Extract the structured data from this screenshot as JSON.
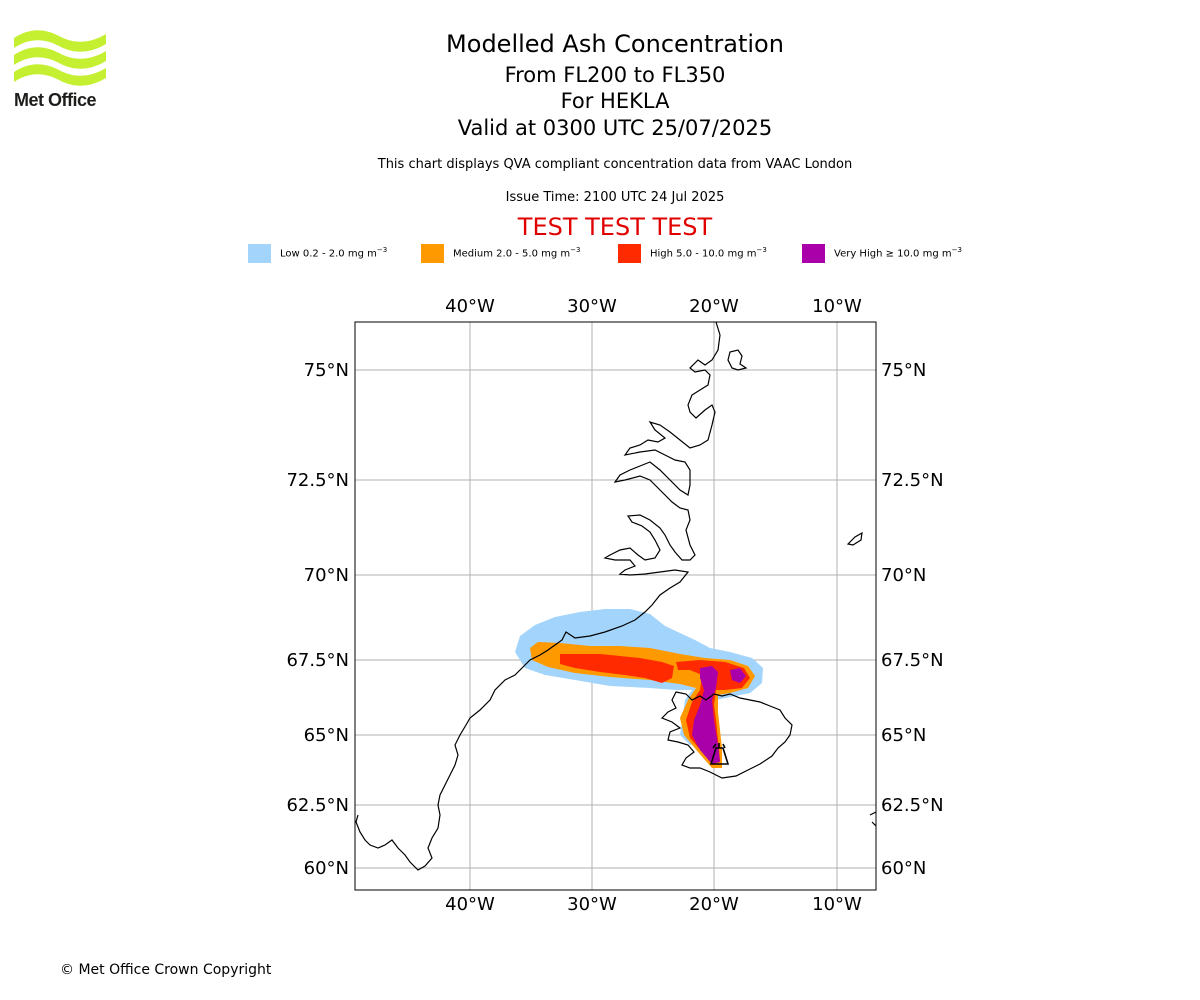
{
  "logo": {
    "text": "Met Office",
    "accent_color": "#c5f032"
  },
  "header": {
    "title": "Modelled Ash Concentration",
    "levels": "From FL200 to FL350",
    "volcano": "For HEKLA",
    "valid_time": "Valid at 0300 UTC 25/07/2025",
    "description": "This chart displays QVA compliant concentration data from VAAC London",
    "issue_time": "Issue Time: 2100 UTC 24 Jul 2025",
    "test_banner": "TEST TEST TEST",
    "test_banner_color": "#e00000"
  },
  "legend": [
    {
      "label": "Low 0.2 - 2.0 mg m",
      "exponent": "−3",
      "color": "#a3d4fb"
    },
    {
      "label": "Medium 2.0 - 5.0 mg m",
      "exponent": "−3",
      "color": "#ff9900"
    },
    {
      "label": "High 5.0 - 10.0 mg m",
      "exponent": "−3",
      "color": "#ff2a00"
    },
    {
      "label": "Very High  ≥  10.0 mg m",
      "exponent": "−3",
      "color": "#aa00aa"
    }
  ],
  "map": {
    "longitude_labels": [
      "40°W",
      "30°W",
      "20°W",
      "10°W"
    ],
    "latitude_labels": [
      "75°N",
      "72.5°N",
      "70°N",
      "67.5°N",
      "65°N",
      "62.5°N",
      "60°N"
    ],
    "volcano_symbol": "volcano-triangle-icon",
    "gridline_color": "#b0b0b0"
  },
  "footer": {
    "copyright": "© Met Office Crown Copyright"
  }
}
